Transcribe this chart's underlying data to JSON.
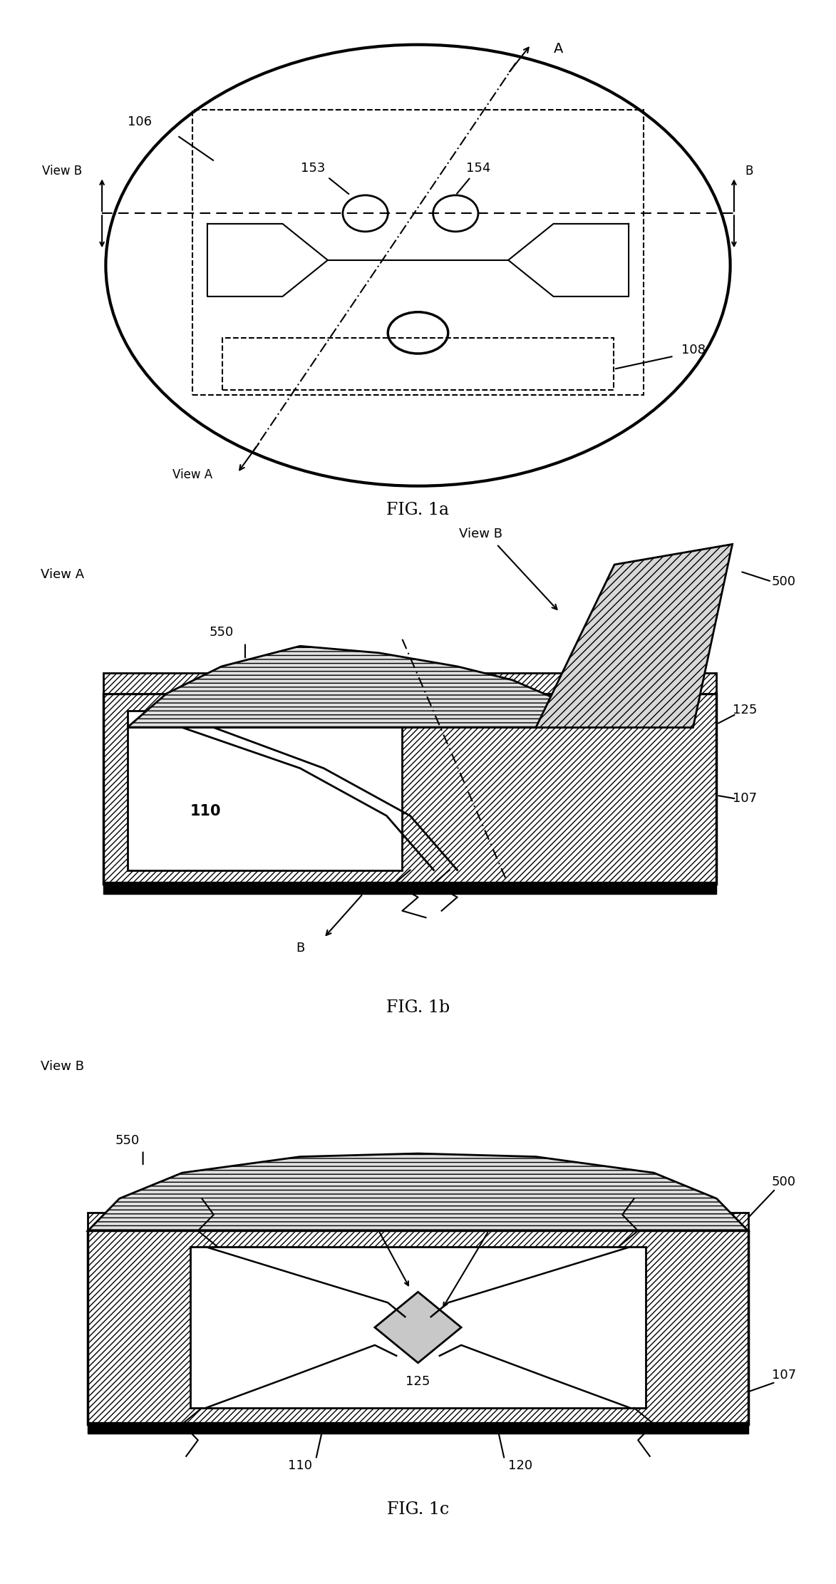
{
  "fig_title_1a": "FIG. 1a",
  "fig_title_1b": "FIG. 1b",
  "fig_title_1c": "FIG. 1c",
  "bg_color": "#ffffff",
  "lw": 2.0,
  "lw_thin": 1.5,
  "fs_label": 13,
  "fs_fig": 17
}
